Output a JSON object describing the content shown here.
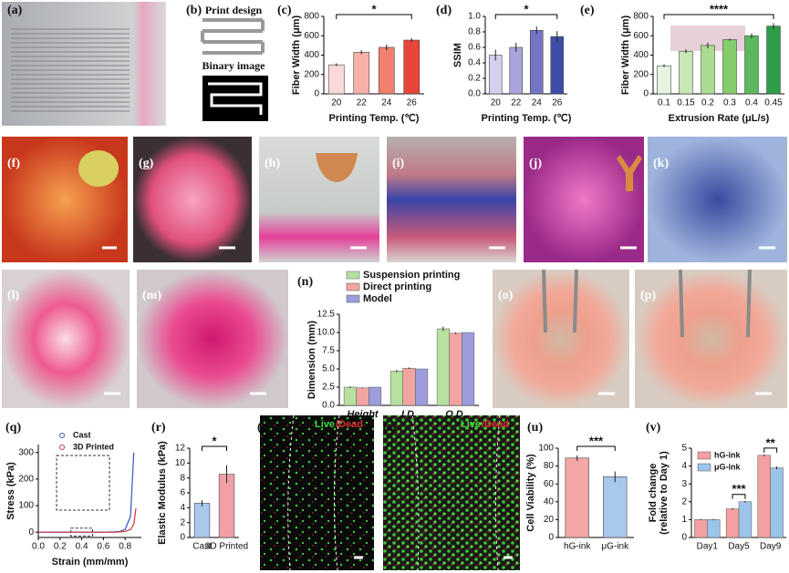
{
  "panel_labels": {
    "a": "(a)",
    "b": "(b)",
    "c": "(c)",
    "d": "(d)",
    "e": "(e)",
    "f": "(f)",
    "g": "(g)",
    "h": "(h)",
    "i": "(i)",
    "j": "(j)",
    "k": "(k)",
    "l": "(l)",
    "m": "(m)",
    "n": "(n)",
    "o": "(o)",
    "p": "(p)",
    "q": "(q)",
    "r": "(r)",
    "s": "(s)",
    "t": "(t)",
    "u": "(u)",
    "v": "(v)"
  },
  "panel_b": {
    "top": "Print design",
    "bottom": "Binary image"
  },
  "stain": {
    "live": "Live",
    "dead": "/Dead"
  },
  "chart_data": [
    {
      "type": "bar",
      "y_label": "Fiber Width (μm)",
      "x_label": "Printing Temp. (℃)",
      "categories": [
        "20",
        "22",
        "24",
        "26"
      ],
      "values": [
        300,
        430,
        480,
        555
      ],
      "errors": [
        15,
        20,
        30,
        20
      ],
      "colors": [
        "#fbd9d9",
        "#f7b0a8",
        "#f08070",
        "#e8453a"
      ],
      "ylim": [
        0,
        800
      ],
      "yticks": [
        0,
        200,
        400,
        600,
        800
      ],
      "annotations": [
        "*"
      ]
    },
    {
      "type": "bar",
      "y_label": "SSIM",
      "x_label": "Printing Temp. (℃)",
      "categories": [
        "20",
        "22",
        "24",
        "26"
      ],
      "values": [
        0.5,
        0.6,
        0.82,
        0.74
      ],
      "errors": [
        0.07,
        0.06,
        0.05,
        0.07
      ],
      "colors": [
        "#d4d0ee",
        "#a9a5dc",
        "#7474c4",
        "#3e4ea8"
      ],
      "ylim": [
        0,
        1
      ],
      "yticks": [
        {
          "value": 0,
          "label": "0.0"
        },
        {
          "value": 0.2,
          "label": "0.2"
        },
        {
          "value": 0.4,
          "label": "0.4"
        },
        {
          "value": 0.6,
          "label": "0.6"
        },
        {
          "value": 0.8,
          "label": "0.8"
        },
        {
          "value": 1,
          "label": "1.0"
        }
      ],
      "annotations": [
        "*"
      ]
    },
    {
      "type": "bar",
      "y_label": "Fiber Width (μm)",
      "x_label": "Extrusion Rate (μL/s)",
      "categories": [
        "0.1",
        "0.15",
        "0.2",
        "0.3",
        "0.4",
        "0.45"
      ],
      "values": [
        290,
        440,
        500,
        560,
        600,
        700
      ],
      "errors": [
        15,
        20,
        30,
        10,
        25,
        30
      ],
      "colors": [
        "#e6f4df",
        "#c9e8b8",
        "#a9dc90",
        "#85cc6c",
        "#5cb85c",
        "#2e9e48"
      ],
      "ylim": [
        0,
        800
      ],
      "yticks": [
        0,
        200,
        400,
        600,
        800
      ],
      "annotations": [
        "****"
      ]
    },
    {
      "type": "grouped_bar",
      "y_label": "Dimension (mm)",
      "categories": [
        "Height",
        "I.D.",
        "O.D."
      ],
      "series": [
        {
          "name": "Suspension printing",
          "color": "#b8e0a0",
          "values": [
            2.5,
            4.7,
            10.5
          ],
          "errors": [
            0.1,
            0.15,
            0.3
          ]
        },
        {
          "name": "Direct printing",
          "color": "#f2a4a0",
          "values": [
            2.4,
            5.1,
            9.9
          ],
          "errors": [
            0.05,
            0.1,
            0.1
          ]
        },
        {
          "name": "Model",
          "color": "#9d9ddc",
          "values": [
            2.5,
            5.0,
            10.0
          ],
          "errors": [
            0,
            0,
            0
          ]
        }
      ],
      "ylim": [
        0,
        12.5
      ],
      "yticks": [
        {
          "value": 0,
          "label": "0.0"
        },
        {
          "value": 2.5,
          "label": "2.5"
        },
        {
          "value": 5,
          "label": "5.0"
        },
        {
          "value": 7.5,
          "label": "7.5"
        },
        {
          "value": 10,
          "label": "10.0"
        },
        {
          "value": 12.5,
          "label": "12.5"
        }
      ]
    },
    {
      "type": "line",
      "y_label": "Stress (kPa)",
      "x_label": "Strain (mm/mm)",
      "x": [
        0,
        0.1,
        0.2,
        0.3,
        0.4,
        0.5,
        0.6,
        0.7,
        0.75,
        0.8,
        0.85,
        0.88,
        0.9
      ],
      "series": [
        {
          "name": "Cast",
          "color": "#3355cc",
          "values": [
            0,
            0,
            0,
            0,
            0,
            0,
            0,
            1,
            3,
            10,
            60,
            300,
            null
          ]
        },
        {
          "name": "3D Printed",
          "color": "#cc3333",
          "values": [
            0,
            0,
            0,
            0,
            0,
            0,
            0,
            0,
            1,
            3,
            10,
            30,
            90
          ]
        }
      ],
      "xlim": [
        0,
        0.95
      ],
      "ylim": [
        -20,
        330
      ],
      "xticks": [
        {
          "value": 0,
          "label": "0.0"
        },
        0.2,
        0.4,
        0.6,
        0.8
      ],
      "yticks": [
        0,
        100,
        200,
        300
      ]
    },
    {
      "type": "bar",
      "y_label": "Elastic Modulus (kPa)",
      "categories": [
        "Cast",
        "3D Printed"
      ],
      "values": [
        4.6,
        8.5
      ],
      "errors": [
        0.4,
        1.2
      ],
      "colors": [
        "#a8c8ec",
        "#f2a0a8"
      ],
      "ylim": [
        0,
        12
      ],
      "yticks": [
        0,
        2,
        4,
        6,
        8,
        10,
        12
      ],
      "annotations": [
        "*"
      ]
    },
    {
      "type": "bar",
      "y_label": "Cell Viability (%)",
      "categories": [
        "hG-ink",
        "μG-ink"
      ],
      "values": [
        89,
        68
      ],
      "errors": [
        3,
        6
      ],
      "colors": [
        "#f4a7a7",
        "#a8c8ec"
      ],
      "ylim": [
        0,
        100
      ],
      "yticks": [
        0,
        20,
        40,
        60,
        80,
        100
      ],
      "annotations": [
        "***"
      ]
    },
    {
      "type": "grouped_bar",
      "y_label": [
        "Fold change",
        "(relative to Day 1)"
      ],
      "categories": [
        "Day1",
        "Day5",
        "Day9"
      ],
      "series": [
        {
          "name": "hG-ink",
          "color": "#f4a0a0",
          "values": [
            1.0,
            1.6,
            4.6
          ],
          "errors": [
            0.03,
            0.05,
            0.05
          ]
        },
        {
          "name": "μG-ink",
          "color": "#9cc4ea",
          "values": [
            1.0,
            2.0,
            3.9
          ],
          "errors": [
            0.03,
            0.05,
            0.08
          ]
        }
      ],
      "ylim": [
        0,
        5
      ],
      "yticks": [
        0,
        1,
        2,
        3,
        4,
        5
      ],
      "annotations": [
        "***",
        "**"
      ]
    }
  ]
}
